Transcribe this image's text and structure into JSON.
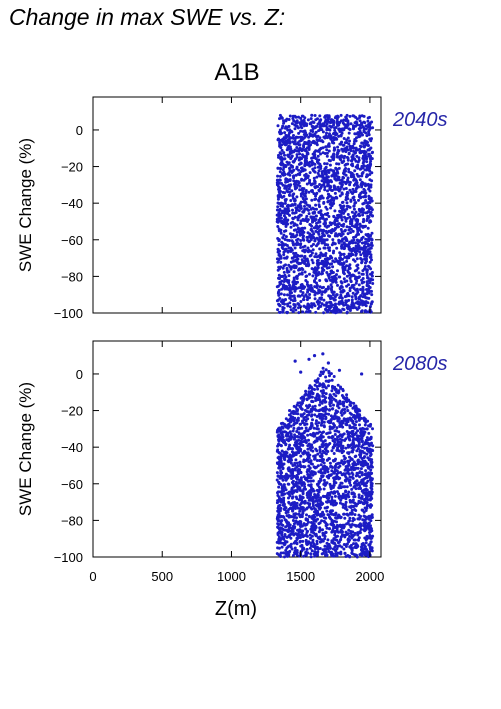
{
  "page_title": "Change in max SWE vs. Z:",
  "scenario": "A1B",
  "colors": {
    "points": "#1c1cc4",
    "label": "#2626a8",
    "axis": "#000000"
  },
  "chart_data": [
    {
      "type": "scatter",
      "panel_label": "2040s",
      "xlabel": "",
      "ylabel": "SWE Change (%)",
      "xlim": [
        0,
        2080
      ],
      "ylim": [
        -100,
        18
      ],
      "x_ticks": [
        0,
        500,
        1000,
        1500,
        2000
      ],
      "y_ticks": [
        0,
        -20,
        -40,
        -60,
        -80,
        -100
      ],
      "y_tick_labels": [
        "0",
        "−20",
        "−40",
        "−60",
        "−80",
        "−100"
      ],
      "x_range_points": [
        1330,
        2020
      ],
      "points": [
        [
          1340,
          -5
        ],
        [
          1345,
          -60
        ],
        [
          1350,
          -96
        ],
        [
          1360,
          -40
        ],
        [
          1370,
          -80
        ],
        [
          1380,
          -20
        ],
        [
          1400,
          -50
        ],
        [
          1420,
          0
        ],
        [
          1440,
          -70
        ],
        [
          1450,
          5
        ],
        [
          1460,
          -96
        ],
        [
          1480,
          -30
        ],
        [
          1500,
          3
        ],
        [
          1520,
          -60
        ],
        [
          1540,
          -97
        ],
        [
          1560,
          -10
        ],
        [
          1580,
          8
        ],
        [
          1600,
          -45
        ],
        [
          1620,
          -85
        ],
        [
          1640,
          5
        ],
        [
          1660,
          -25
        ],
        [
          1680,
          -98
        ],
        [
          1700,
          6
        ],
        [
          1720,
          -55
        ],
        [
          1740,
          -15
        ],
        [
          1760,
          -90
        ],
        [
          1780,
          4
        ],
        [
          1800,
          -35
        ],
        [
          1820,
          -75
        ],
        [
          1840,
          5
        ],
        [
          1860,
          -50
        ],
        [
          1880,
          -95
        ],
        [
          1900,
          -10
        ],
        [
          1920,
          -65
        ],
        [
          1940,
          3
        ],
        [
          1960,
          -40
        ],
        [
          1980,
          -85
        ],
        [
          2000,
          -5
        ],
        [
          2010,
          -95
        ],
        [
          2015,
          -60
        ]
      ]
    },
    {
      "type": "scatter",
      "panel_label": "2080s",
      "xlabel": "Z(m)",
      "ylabel": "SWE Change (%)",
      "xlim": [
        0,
        2080
      ],
      "ylim": [
        -100,
        18
      ],
      "x_ticks": [
        0,
        500,
        1000,
        1500,
        2000
      ],
      "x_tick_labels": [
        "0",
        "500",
        "1000",
        "1500",
        "2000"
      ],
      "y_ticks": [
        0,
        -20,
        -40,
        -60,
        -80,
        -100
      ],
      "y_tick_labels": [
        "0",
        "−20",
        "−40",
        "−60",
        "−80",
        "−100"
      ],
      "x_range_points": [
        1330,
        2020
      ],
      "points": [
        [
          1340,
          -30
        ],
        [
          1350,
          -99
        ],
        [
          1360,
          -70
        ],
        [
          1380,
          -45
        ],
        [
          1400,
          -99
        ],
        [
          1420,
          -20
        ],
        [
          1440,
          -85
        ],
        [
          1460,
          7
        ],
        [
          1480,
          -30
        ],
        [
          1500,
          1
        ],
        [
          1520,
          -60
        ],
        [
          1540,
          -99
        ],
        [
          1560,
          8
        ],
        [
          1580,
          -15
        ],
        [
          1600,
          10
        ],
        [
          1620,
          -75
        ],
        [
          1640,
          -40
        ],
        [
          1660,
          11
        ],
        [
          1680,
          -99
        ],
        [
          1700,
          6
        ],
        [
          1720,
          -25
        ],
        [
          1740,
          -90
        ],
        [
          1760,
          -10
        ],
        [
          1780,
          2
        ],
        [
          1800,
          -55
        ],
        [
          1820,
          -98
        ],
        [
          1840,
          -20
        ],
        [
          1860,
          -70
        ],
        [
          1880,
          -40
        ],
        [
          1900,
          -99
        ],
        [
          1920,
          -60
        ],
        [
          1940,
          0
        ],
        [
          1960,
          -80
        ],
        [
          1980,
          -30
        ],
        [
          2000,
          -99
        ],
        [
          2010,
          -50
        ],
        [
          2015,
          -95
        ]
      ]
    }
  ]
}
